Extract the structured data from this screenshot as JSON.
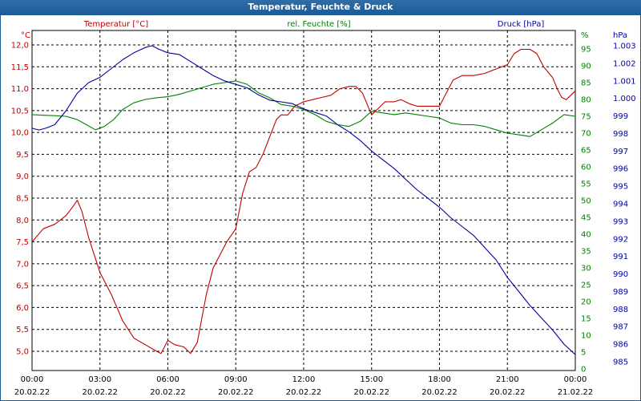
{
  "window": {
    "title": "Temperatur, Feuchte & Druck"
  },
  "colors": {
    "temperature": "#c00000",
    "humidity": "#008000",
    "pressure": "#0000a0",
    "grid": "#000000"
  },
  "chart_data": {
    "type": "line",
    "title": "Temperatur, Feuchte & Druck",
    "grid": true,
    "x_ticks": [
      {
        "time": "00:00",
        "date": "20.02.22"
      },
      {
        "time": "03:00",
        "date": "20.02.22"
      },
      {
        "time": "06:00",
        "date": "20.02.22"
      },
      {
        "time": "09:00",
        "date": "20.02.22"
      },
      {
        "time": "12:00",
        "date": "20.02.22"
      },
      {
        "time": "15:00",
        "date": "20.02.22"
      },
      {
        "time": "18:00",
        "date": "20.02.22"
      },
      {
        "time": "21:00",
        "date": "20.02.22"
      },
      {
        "time": "00:00",
        "date": "21.02.22"
      }
    ],
    "axes": {
      "temperature": {
        "label": "Temperatur [°C]",
        "unit": "°C",
        "ticks": [
          "12,0",
          "11,5",
          "11,0",
          "10,5",
          "10,0",
          "9,5",
          "9,0",
          "8,5",
          "8,0",
          "7,5",
          "7,0",
          "6,5",
          "6,0",
          "5,5",
          "5,0"
        ],
        "ylim": [
          4.75,
          12.15
        ]
      },
      "humidity": {
        "label": "rel. Feuchte [%]",
        "unit": "%",
        "ticks": [
          "95",
          "90",
          "85",
          "80",
          "75",
          "70",
          "65",
          "60",
          "55",
          "50",
          "45",
          "40",
          "35",
          "30",
          "25",
          "20",
          "15",
          "10",
          "5",
          "0"
        ],
        "ylim": [
          0,
          98
        ]
      },
      "pressure": {
        "label": "Druck [hPa]",
        "unit": "hPa",
        "ticks": [
          "1.003",
          "1.002",
          "1.001",
          "1.000",
          "999",
          "998",
          "997",
          "996",
          "995",
          "994",
          "993",
          "992",
          "991",
          "990",
          "989",
          "988",
          "987",
          "986",
          "985"
        ],
        "ylim": [
          984.5,
          1003.5
        ]
      }
    },
    "series": [
      {
        "name": "Temperatur [°C]",
        "axis": "temperature",
        "points": [
          [
            0,
            7.5
          ],
          [
            0.5,
            7.8
          ],
          [
            1.0,
            7.9
          ],
          [
            1.5,
            8.1
          ],
          [
            1.8,
            8.3
          ],
          [
            2.0,
            8.45
          ],
          [
            2.2,
            8.2
          ],
          [
            2.5,
            7.6
          ],
          [
            3.0,
            6.8
          ],
          [
            3.5,
            6.3
          ],
          [
            4.0,
            5.7
          ],
          [
            4.5,
            5.3
          ],
          [
            5.0,
            5.15
          ],
          [
            5.5,
            5.0
          ],
          [
            5.7,
            4.95
          ],
          [
            6.0,
            5.25
          ],
          [
            6.3,
            5.15
          ],
          [
            6.7,
            5.1
          ],
          [
            7.0,
            4.95
          ],
          [
            7.3,
            5.2
          ],
          [
            7.7,
            6.3
          ],
          [
            8.0,
            6.9
          ],
          [
            8.3,
            7.2
          ],
          [
            8.6,
            7.5
          ],
          [
            9.0,
            7.8
          ],
          [
            9.3,
            8.6
          ],
          [
            9.6,
            9.1
          ],
          [
            9.9,
            9.2
          ],
          [
            10.2,
            9.5
          ],
          [
            10.5,
            9.9
          ],
          [
            10.8,
            10.3
          ],
          [
            11.0,
            10.4
          ],
          [
            11.3,
            10.4
          ],
          [
            11.6,
            10.6
          ],
          [
            12.0,
            10.7
          ],
          [
            12.4,
            10.75
          ],
          [
            12.8,
            10.8
          ],
          [
            13.2,
            10.85
          ],
          [
            13.6,
            11.0
          ],
          [
            14.0,
            11.05
          ],
          [
            14.3,
            11.05
          ],
          [
            14.6,
            10.9
          ],
          [
            15.0,
            10.4
          ],
          [
            15.3,
            10.55
          ],
          [
            15.6,
            10.7
          ],
          [
            16.0,
            10.7
          ],
          [
            16.3,
            10.75
          ],
          [
            16.7,
            10.65
          ],
          [
            17.0,
            10.6
          ],
          [
            17.5,
            10.6
          ],
          [
            17.8,
            10.6
          ],
          [
            18.0,
            10.6
          ],
          [
            18.3,
            10.9
          ],
          [
            18.6,
            11.2
          ],
          [
            19.0,
            11.3
          ],
          [
            19.5,
            11.3
          ],
          [
            20.0,
            11.35
          ],
          [
            20.5,
            11.45
          ],
          [
            21.0,
            11.55
          ],
          [
            21.3,
            11.8
          ],
          [
            21.6,
            11.9
          ],
          [
            22.0,
            11.9
          ],
          [
            22.3,
            11.8
          ],
          [
            22.6,
            11.5
          ],
          [
            23.0,
            11.25
          ],
          [
            23.2,
            11.0
          ],
          [
            23.4,
            10.8
          ],
          [
            23.6,
            10.75
          ],
          [
            23.8,
            10.85
          ],
          [
            24.0,
            10.95
          ]
        ]
      },
      {
        "name": "rel. Feuchte [%]",
        "axis": "humidity",
        "points": [
          [
            0,
            75.5
          ],
          [
            0.5,
            75.3
          ],
          [
            1.0,
            75.2
          ],
          [
            1.5,
            75.0
          ],
          [
            2.0,
            74.0
          ],
          [
            2.4,
            72.5
          ],
          [
            2.8,
            71.0
          ],
          [
            3.2,
            72.0
          ],
          [
            3.6,
            74.0
          ],
          [
            4.0,
            77.0
          ],
          [
            4.5,
            79.0
          ],
          [
            5.0,
            80.0
          ],
          [
            5.5,
            80.5
          ],
          [
            6.0,
            80.8
          ],
          [
            6.5,
            81.5
          ],
          [
            7.0,
            82.5
          ],
          [
            7.5,
            83.5
          ],
          [
            8.0,
            84.5
          ],
          [
            8.5,
            85.0
          ],
          [
            9.0,
            85.5
          ],
          [
            9.5,
            84.5
          ],
          [
            10.0,
            82.0
          ],
          [
            10.5,
            80.5
          ],
          [
            11.0,
            78.5
          ],
          [
            11.5,
            78.0
          ],
          [
            12.0,
            77.0
          ],
          [
            12.5,
            75.5
          ],
          [
            13.0,
            73.5
          ],
          [
            13.5,
            72.5
          ],
          [
            14.0,
            72.0
          ],
          [
            14.5,
            73.5
          ],
          [
            15.0,
            76.5
          ],
          [
            15.5,
            76.0
          ],
          [
            16.0,
            75.5
          ],
          [
            16.5,
            76.0
          ],
          [
            17.0,
            75.5
          ],
          [
            17.5,
            75.0
          ],
          [
            18.0,
            74.5
          ],
          [
            18.5,
            73.0
          ],
          [
            19.0,
            72.5
          ],
          [
            19.5,
            72.5
          ],
          [
            20.0,
            72.0
          ],
          [
            20.5,
            71.0
          ],
          [
            21.0,
            70.0
          ],
          [
            21.5,
            69.5
          ],
          [
            22.0,
            69.0
          ],
          [
            22.5,
            71.0
          ],
          [
            23.0,
            73.0
          ],
          [
            23.5,
            75.5
          ],
          [
            24.0,
            75.0
          ]
        ]
      },
      {
        "name": "Druck [hPa]",
        "axis": "pressure",
        "points": [
          [
            0,
            998.3
          ],
          [
            0.3,
            998.2
          ],
          [
            0.6,
            998.3
          ],
          [
            1.0,
            998.5
          ],
          [
            1.5,
            999.3
          ],
          [
            2.0,
            1000.3
          ],
          [
            2.5,
            1000.9
          ],
          [
            3.0,
            1001.2
          ],
          [
            3.5,
            1001.7
          ],
          [
            4.0,
            1002.2
          ],
          [
            4.5,
            1002.6
          ],
          [
            5.0,
            1002.9
          ],
          [
            5.3,
            1003.0
          ],
          [
            5.6,
            1002.8
          ],
          [
            6.0,
            1002.6
          ],
          [
            6.5,
            1002.5
          ],
          [
            7.0,
            1002.1
          ],
          [
            7.5,
            1001.7
          ],
          [
            8.0,
            1001.3
          ],
          [
            8.5,
            1001.0
          ],
          [
            9.0,
            1000.8
          ],
          [
            9.5,
            1000.6
          ],
          [
            10.0,
            1000.2
          ],
          [
            10.5,
            999.9
          ],
          [
            11.0,
            999.8
          ],
          [
            11.5,
            999.7
          ],
          [
            12.0,
            999.4
          ],
          [
            12.5,
            999.2
          ],
          [
            13.0,
            999.0
          ],
          [
            13.5,
            998.5
          ],
          [
            14.0,
            998.1
          ],
          [
            14.5,
            997.6
          ],
          [
            15.0,
            997.0
          ],
          [
            15.5,
            996.5
          ],
          [
            16.0,
            996.0
          ],
          [
            16.5,
            995.4
          ],
          [
            17.0,
            994.8
          ],
          [
            17.5,
            994.3
          ],
          [
            18.0,
            993.8
          ],
          [
            18.5,
            993.2
          ],
          [
            19.0,
            992.7
          ],
          [
            19.5,
            992.2
          ],
          [
            20.0,
            991.5
          ],
          [
            20.5,
            990.8
          ],
          [
            21.0,
            989.8
          ],
          [
            21.5,
            989.0
          ],
          [
            22.0,
            988.2
          ],
          [
            22.5,
            987.5
          ],
          [
            23.0,
            986.8
          ],
          [
            23.5,
            986.0
          ],
          [
            24.0,
            985.4
          ]
        ]
      }
    ]
  }
}
